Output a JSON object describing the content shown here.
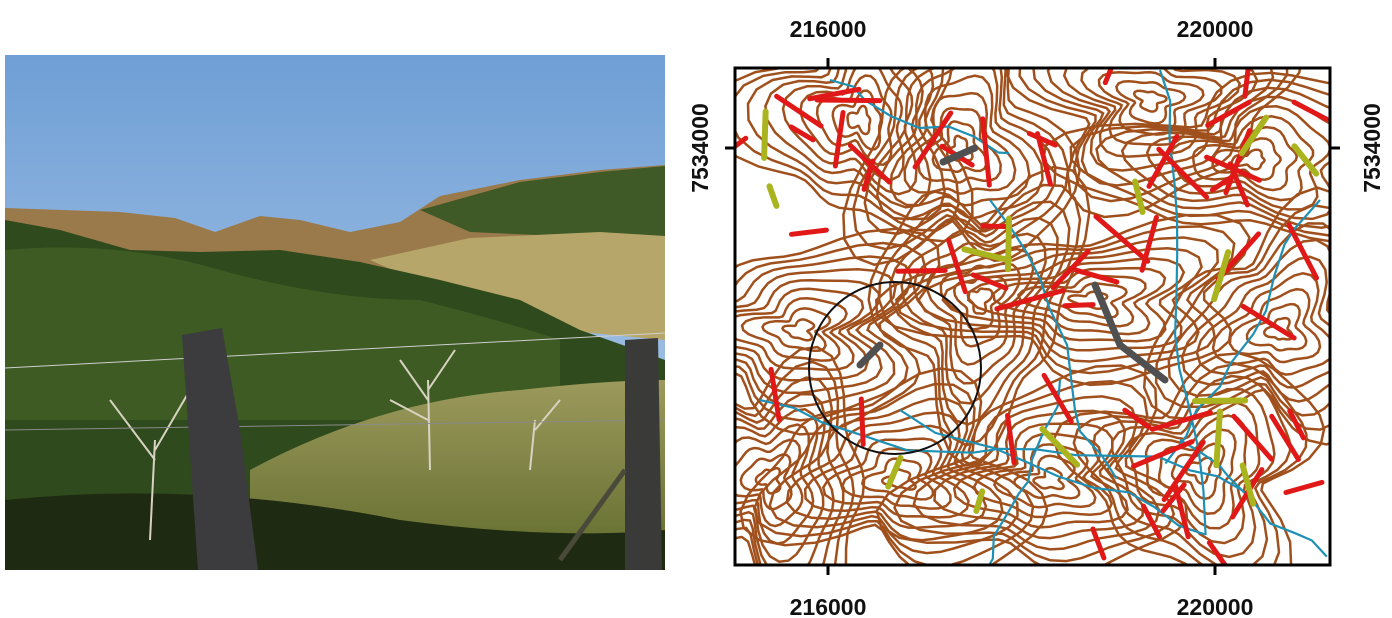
{
  "map": {
    "x_ticks": [
      216000,
      220000
    ],
    "y_ticks": [
      7534000
    ]
  }
}
